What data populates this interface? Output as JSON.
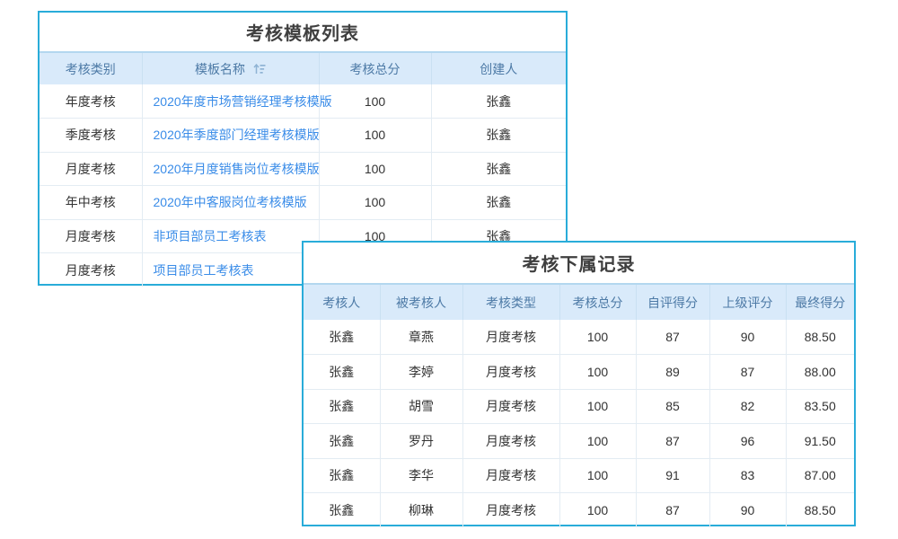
{
  "colors": {
    "panel_border": "#29acd9",
    "header_bg": "#d9eafa",
    "header_text": "#4d7aa6",
    "header_top_line": "#b3d7ef",
    "row_line": "#e3ecf3",
    "body_text": "#333333",
    "link": "#3a8ce8",
    "title_text": "#3f3f3f"
  },
  "template_panel": {
    "title": "考核模板列表",
    "columns": [
      "考核类别",
      "模板名称",
      "考核总分",
      "创建人"
    ],
    "sort_icon": "sort-ascending",
    "rows": [
      {
        "category": "年度考核",
        "name": "2020年度市场营销经理考核模版",
        "score": "100",
        "creator": "张鑫"
      },
      {
        "category": "季度考核",
        "name": "2020年季度部门经理考核模版",
        "score": "100",
        "creator": "张鑫"
      },
      {
        "category": "月度考核",
        "name": "2020年月度销售岗位考核模版",
        "score": "100",
        "creator": "张鑫"
      },
      {
        "category": "年中考核",
        "name": "2020年中客服岗位考核模版",
        "score": "100",
        "creator": "张鑫"
      },
      {
        "category": "月度考核",
        "name": "非项目部员工考核表",
        "score": "100",
        "creator": "张鑫"
      },
      {
        "category": "月度考核",
        "name": "项目部员工考核表",
        "score": "",
        "creator": ""
      }
    ]
  },
  "records_panel": {
    "title": "考核下属记录",
    "columns": [
      "考核人",
      "被考核人",
      "考核类型",
      "考核总分",
      "自评得分",
      "上级评分",
      "最终得分"
    ],
    "rows": [
      [
        "张鑫",
        "章燕",
        "月度考核",
        "100",
        "87",
        "90",
        "88.50"
      ],
      [
        "张鑫",
        "李婷",
        "月度考核",
        "100",
        "89",
        "87",
        "88.00"
      ],
      [
        "张鑫",
        "胡雪",
        "月度考核",
        "100",
        "85",
        "82",
        "83.50"
      ],
      [
        "张鑫",
        "罗丹",
        "月度考核",
        "100",
        "87",
        "96",
        "91.50"
      ],
      [
        "张鑫",
        "李华",
        "月度考核",
        "100",
        "91",
        "83",
        "87.00"
      ],
      [
        "张鑫",
        "柳琳",
        "月度考核",
        "100",
        "87",
        "90",
        "88.50"
      ]
    ]
  }
}
